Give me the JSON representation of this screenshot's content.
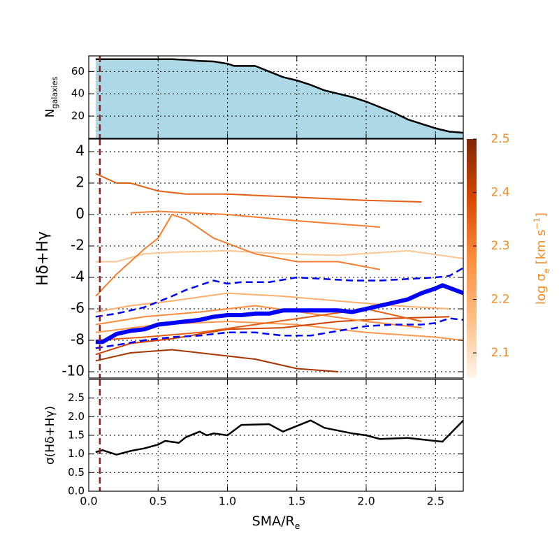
{
  "chart_data": [
    {
      "type": "area",
      "ylabel": {
        "main": "N",
        "sub": "galaxies"
      },
      "xlim": [
        0,
        2.7
      ],
      "xticks": [
        {
          "value": 0,
          "label": "0.0"
        },
        0.5,
        {
          "value": 1,
          "label": "1.0"
        },
        1.5,
        {
          "value": 2,
          "label": "2.0"
        },
        2.5
      ],
      "ylim": [
        0,
        74
      ],
      "yticks": [
        20,
        40,
        60
      ],
      "grid": true,
      "vline": 0.08,
      "vline_color": "#8b1a1a",
      "fill": "#add8e6",
      "series": [
        {
          "color": "#000000",
          "linewidth": 2.5,
          "x": [
            0.05,
            0.6,
            0.7,
            0.8,
            0.9,
            1.0,
            1.05,
            1.2,
            1.3,
            1.4,
            1.5,
            1.6,
            1.7,
            1.8,
            1.9,
            2.0,
            2.1,
            2.2,
            2.3,
            2.4,
            2.5,
            2.6,
            2.7
          ],
          "values": [
            71,
            71,
            70.5,
            69.5,
            69,
            67,
            65,
            65,
            60,
            55,
            52,
            48,
            43,
            40,
            37,
            33,
            28,
            23,
            17,
            13,
            9,
            6,
            5
          ]
        }
      ]
    },
    {
      "type": "line",
      "ylabel": {
        "main": "Hδ+Hγ"
      },
      "xlim": [
        0,
        2.7
      ],
      "xticks": [
        {
          "value": 0,
          "label": "0.0"
        },
        0.5,
        {
          "value": 1,
          "label": "1.0"
        },
        1.5,
        {
          "value": 2,
          "label": "2.0"
        },
        2.5
      ],
      "ylim": [
        -10.4,
        4.8
      ],
      "yticks": [
        -10,
        -8,
        -6,
        -4,
        -2,
        0,
        2,
        4
      ],
      "grid": true,
      "vline": 0.08,
      "vline_color": "#8b1a1a",
      "colorbar": {
        "label": {
          "main": "log σ",
          "sub": "e",
          "rest": " [km s",
          "sup": "−1",
          "end": "]"
        },
        "lim": [
          2.053,
          2.5
        ],
        "ticks": [
          2.1,
          2.2,
          2.3,
          2.4,
          2.5
        ],
        "colors": [
          "#fff5eb",
          "#fdbe85",
          "#fd8d3c",
          "#d94701",
          "#7f2704"
        ],
        "text_color": "#f28c28"
      },
      "galaxies": [
        {
          "sigma": 2.35,
          "x": [
            0.05,
            0.2,
            0.3,
            0.5,
            0.7,
            1.0,
            1.5,
            2.0,
            2.4
          ],
          "values": [
            2.6,
            2.0,
            2.0,
            1.5,
            1.3,
            1.3,
            1.1,
            0.9,
            0.8
          ]
        },
        {
          "sigma": 2.3,
          "x": [
            0.3,
            0.5,
            1.0,
            1.5,
            2.1
          ],
          "values": [
            0.1,
            0.2,
            0.0,
            -0.4,
            -0.8
          ]
        },
        {
          "sigma": 2.15,
          "x": [
            0.05,
            0.2,
            0.4,
            0.6,
            1.0,
            1.4,
            1.8,
            2.3,
            2.7
          ],
          "values": [
            -3.0,
            -3.0,
            -2.5,
            -2.4,
            -2.3,
            -2.5,
            -2.6,
            -2.3,
            -2.8
          ]
        },
        {
          "sigma": 2.3,
          "x": [
            0.05,
            0.2,
            0.4,
            0.5,
            0.6,
            0.7,
            0.9,
            1.2,
            1.5,
            1.8,
            2.1
          ],
          "values": [
            -5.2,
            -3.8,
            -2.2,
            -1.5,
            0.0,
            -0.3,
            -1.5,
            -2.5,
            -3.0,
            -3.0,
            -3.5
          ]
        },
        {
          "sigma": 2.25,
          "x": [
            0.05,
            0.5,
            1.0,
            1.5,
            2.0,
            2.5,
            2.7
          ],
          "values": [
            -7.5,
            -7.0,
            -6.8,
            -7.0,
            -7.5,
            -7.8,
            -8.0
          ]
        },
        {
          "sigma": 2.45,
          "x": [
            0.05,
            0.3,
            0.6,
            0.9,
            1.2,
            1.5,
            1.8
          ],
          "values": [
            -9.3,
            -8.8,
            -8.6,
            -8.9,
            -9.2,
            -9.8,
            -10.0
          ]
        },
        {
          "sigma": 2.4,
          "x": [
            0.05,
            0.3,
            0.6,
            1.0,
            1.4,
            1.8,
            2.2,
            2.6
          ],
          "values": [
            -8.9,
            -8.2,
            -7.9,
            -7.3,
            -7.2,
            -6.8,
            -6.6,
            -6.5
          ]
        },
        {
          "sigma": 2.2,
          "x": [
            0.05,
            0.3,
            0.6,
            1.0,
            1.4,
            1.8,
            2.2,
            2.6
          ],
          "values": [
            -6.2,
            -5.8,
            -5.5,
            -5.0,
            -5.2,
            -5.5,
            -5.8,
            -6.0
          ]
        },
        {
          "sigma": 2.28,
          "x": [
            0.05,
            0.4,
            0.8,
            1.2,
            1.6,
            2.0,
            2.4
          ],
          "values": [
            -7.0,
            -6.5,
            -6.2,
            -5.8,
            -6.3,
            -6.8,
            -7.2
          ]
        },
        {
          "sigma": 2.35,
          "x": [
            0.05,
            0.4,
            0.8,
            1.2,
            1.6,
            2.0,
            2.4
          ],
          "values": [
            -8.0,
            -7.8,
            -7.5,
            -7.0,
            -6.5,
            -6.0,
            -6.8
          ]
        }
      ],
      "series": [
        {
          "color": "#0000ff",
          "linewidth": 2.5,
          "dashed": true,
          "x": [
            0.05,
            0.2,
            0.4,
            0.6,
            0.7,
            0.8,
            0.9,
            1.0,
            1.1,
            1.3,
            1.5,
            1.7,
            1.9,
            2.1,
            2.3,
            2.5,
            2.6,
            2.7
          ],
          "values": [
            -6.5,
            -6.3,
            -5.9,
            -5.2,
            -4.8,
            -4.5,
            -4.2,
            -4.4,
            -4.3,
            -4.3,
            -4.0,
            -4.1,
            -4.2,
            -4.2,
            -4.1,
            -4.0,
            -3.9,
            -3.4
          ]
        },
        {
          "color": "#0000ff",
          "linewidth": 2.5,
          "dashed": true,
          "x": [
            0.05,
            0.2,
            0.4,
            0.6,
            0.8,
            1.0,
            1.2,
            1.4,
            1.6,
            1.8,
            2.0,
            2.2,
            2.4,
            2.5,
            2.6,
            2.7
          ],
          "values": [
            -8.5,
            -8.3,
            -8.0,
            -7.8,
            -7.7,
            -7.5,
            -7.5,
            -7.7,
            -7.7,
            -7.4,
            -7.1,
            -7.0,
            -7.0,
            -6.9,
            -6.6,
            -6.7
          ]
        },
        {
          "color": "#0000ff",
          "linewidth": 6,
          "x": [
            0.05,
            0.1,
            0.2,
            0.3,
            0.4,
            0.5,
            0.6,
            0.7,
            0.8,
            0.9,
            1.0,
            1.1,
            1.2,
            1.3,
            1.4,
            1.5,
            1.6,
            1.7,
            1.8,
            1.9,
            2.0,
            2.1,
            2.2,
            2.3,
            2.4,
            2.5,
            2.55,
            2.7
          ],
          "values": [
            -8.1,
            -8.1,
            -7.6,
            -7.4,
            -7.3,
            -7.0,
            -6.9,
            -6.8,
            -6.7,
            -6.5,
            -6.4,
            -6.4,
            -6.3,
            -6.3,
            -6.1,
            -6.1,
            -6.1,
            -6.1,
            -6.1,
            -6.2,
            -6.0,
            -5.8,
            -5.6,
            -5.4,
            -5.0,
            -4.7,
            -4.5,
            -5.0
          ]
        }
      ]
    },
    {
      "type": "line",
      "ylabel": {
        "main": "σ(Hδ+Hγ)"
      },
      "xlabel": {
        "main": "SMA/R",
        "sub": "e"
      },
      "xlim": [
        0,
        2.7
      ],
      "xticks": [
        {
          "value": 0,
          "label": "0.0"
        },
        0.5,
        {
          "value": 1,
          "label": "1.0"
        },
        1.5,
        {
          "value": 2,
          "label": "2.0"
        },
        2.5
      ],
      "ylim": [
        0,
        3
      ],
      "yticks": [
        {
          "value": 0,
          "label": "0.0"
        },
        0.5,
        {
          "value": 1,
          "label": "1.0"
        },
        1.5,
        {
          "value": 2,
          "label": "2.0"
        },
        2.5
      ],
      "grid": true,
      "vline": 0.08,
      "vline_color": "#8b1a1a",
      "series": [
        {
          "color": "#000000",
          "linewidth": 2.5,
          "x": [
            0.05,
            0.1,
            0.2,
            0.3,
            0.4,
            0.5,
            0.55,
            0.65,
            0.7,
            0.8,
            0.85,
            0.9,
            1.0,
            1.1,
            1.3,
            1.4,
            1.6,
            1.7,
            1.9,
            2.0,
            2.1,
            2.3,
            2.55,
            2.7
          ],
          "values": [
            1.05,
            1.1,
            0.98,
            1.08,
            1.15,
            1.25,
            1.35,
            1.3,
            1.45,
            1.6,
            1.5,
            1.55,
            1.5,
            1.78,
            1.8,
            1.6,
            1.9,
            1.7,
            1.55,
            1.5,
            1.4,
            1.43,
            1.33,
            1.9
          ]
        }
      ]
    }
  ]
}
